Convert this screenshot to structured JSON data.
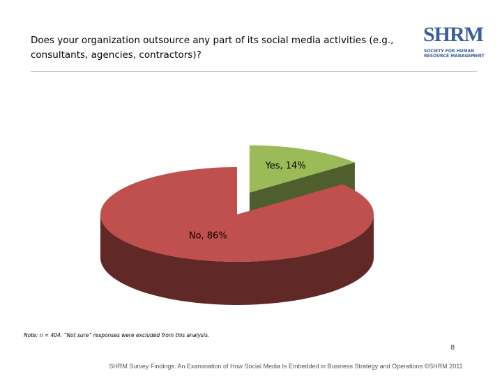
{
  "chart_data": {
    "type": "pie",
    "title": "Does your organization outsource any part of its social media activities (e.g., consultants, agencies, contractors)?",
    "values": [
      14,
      86
    ],
    "value_labels": [
      "Yes, 14%",
      "No, 86%"
    ],
    "colors": [
      "#9bbb59",
      "#c0504d"
    ],
    "note": "Note: n = 404. “Not sure” responses were excluded from this analysis."
  },
  "logo": {
    "name": "SHRM",
    "tagline_1": "SOCIETY FOR HUMAN",
    "tagline_2": "RESOURCE MANAGEMENT"
  },
  "page_number": 8,
  "footer": "SHRM Survey Findings: An Examination of How Social Media Is Embedded in Business Strategy and Operations ©SHRM 2011"
}
